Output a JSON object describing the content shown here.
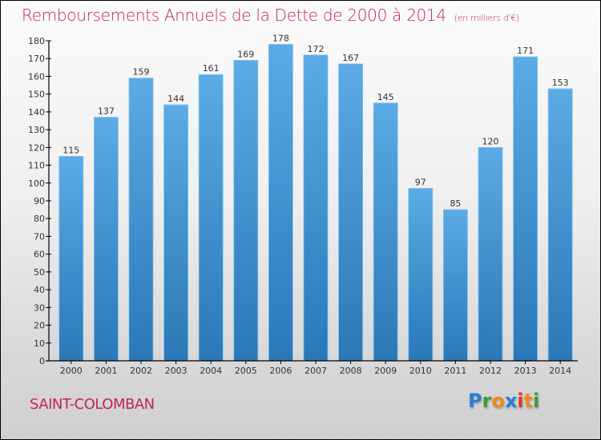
{
  "header": {
    "title": "Remboursements Annuels de la Dette de 2000 à 2014",
    "unit": "(en milliers d'€)"
  },
  "footer": {
    "place": "SAINT-COLOMBAN",
    "logo_letters": [
      {
        "ch": "P",
        "color": "#2a7fd4"
      },
      {
        "ch": "r",
        "color": "#3a9a3a"
      },
      {
        "ch": "o",
        "color": "#f08a1c"
      },
      {
        "ch": "x",
        "color": "#2a7fd4"
      },
      {
        "ch": "i",
        "color": "#e2332a"
      },
      {
        "ch": "t",
        "color": "#f08a1c"
      },
      {
        "ch": "i",
        "color": "#3a9a3a"
      }
    ]
  },
  "colors": {
    "title": "#c2245a",
    "bar_top": "#5aabe6",
    "bar_bottom": "#2a78b6",
    "axis": "#000000",
    "label": "#333333"
  },
  "chart_data": {
    "type": "bar",
    "title": "Remboursements Annuels de la Dette de 2000 à 2014",
    "subtitle": "(en milliers d'€)",
    "xlabel": "",
    "ylabel": "",
    "categories": [
      "2000",
      "2001",
      "2002",
      "2003",
      "2004",
      "2005",
      "2006",
      "2007",
      "2008",
      "2009",
      "2010",
      "2011",
      "2012",
      "2013",
      "2014"
    ],
    "values": [
      115,
      137,
      159,
      144,
      161,
      169,
      178,
      172,
      167,
      145,
      97,
      85,
      120,
      171,
      153
    ],
    "ylim": [
      0,
      180
    ],
    "yticks": [
      0,
      10,
      20,
      30,
      40,
      50,
      60,
      70,
      80,
      90,
      100,
      110,
      120,
      130,
      140,
      150,
      160,
      170,
      180
    ],
    "grid": false,
    "legend": "none",
    "data_labels": true
  }
}
